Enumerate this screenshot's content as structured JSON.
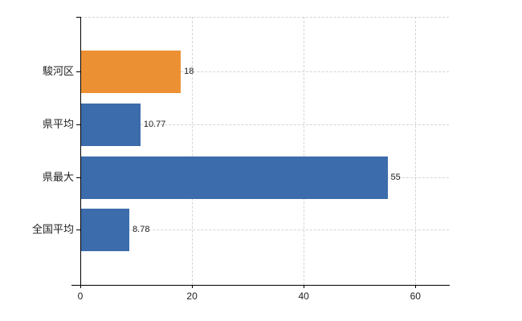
{
  "chart_data": {
    "type": "bar",
    "orientation": "horizontal",
    "title": "",
    "xlabel": "",
    "ylabel": "",
    "categories": [
      "駿河区",
      "県平均",
      "県最大",
      "全国平均"
    ],
    "values": [
      18,
      10.77,
      55,
      8.78
    ],
    "value_labels": [
      "18",
      "10.77",
      "55",
      "8.78"
    ],
    "bar_colors": [
      "#EC9133",
      "#3C6CAB",
      "#3C6CAB",
      "#3C6CAB"
    ],
    "xlim": [
      0,
      66
    ],
    "xticks": [
      0,
      20,
      40,
      60
    ],
    "xtick_labels": [
      "0",
      "20",
      "40",
      "60"
    ],
    "grid": true,
    "legend": "none",
    "colors": {
      "bar_orange": "#EC9133",
      "bar_blue": "#3C6CAB",
      "axis": "#000000",
      "gridline": "#d4d4d4",
      "text": "#222222",
      "background": "#ffffff"
    }
  }
}
